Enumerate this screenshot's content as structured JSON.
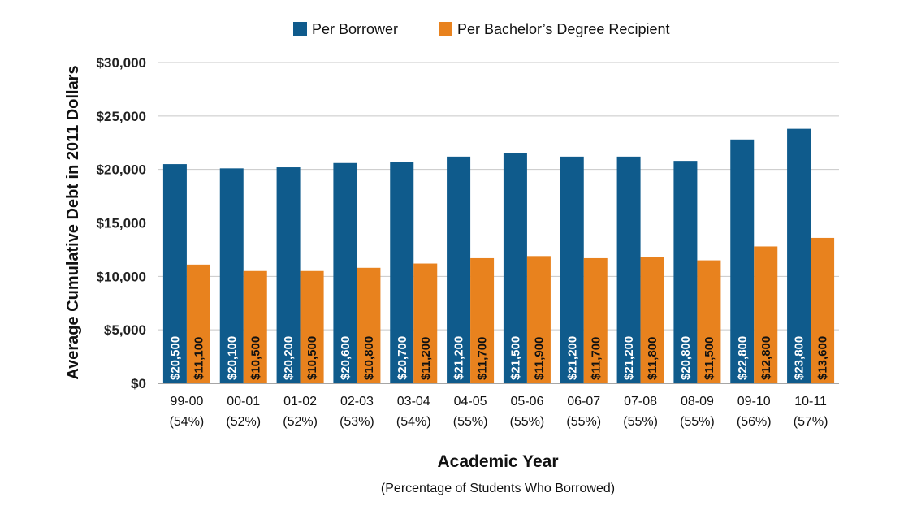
{
  "chart_data": {
    "type": "bar",
    "title": "",
    "xlabel": "Academic Year",
    "xlabel_sub": "(Percentage of Students Who Borrowed)",
    "ylabel": "Average Cumulative Debt in 2011 Dollars",
    "ylim": [
      0,
      30000
    ],
    "yticks": [
      0,
      5000,
      10000,
      15000,
      20000,
      25000,
      30000
    ],
    "ytick_labels": [
      "$0",
      "$5,000",
      "$10,000",
      "$15,000",
      "$20,000",
      "$25,000",
      "$30,000"
    ],
    "grid": true,
    "legend_position": "top-center",
    "categories": [
      "99-00",
      "00-01",
      "01-02",
      "02-03",
      "03-04",
      "04-05",
      "05-06",
      "06-07",
      "07-08",
      "08-09",
      "09-10",
      "10-11"
    ],
    "category_pcts": [
      "(54%)",
      "(52%)",
      "(52%)",
      "(53%)",
      "(54%)",
      "(55%)",
      "(55%)",
      "(55%)",
      "(55%)",
      "(55%)",
      "(56%)",
      "(57%)"
    ],
    "series": [
      {
        "name": "Per Borrower",
        "color": "#0f5b8c",
        "label_color": "#ffffff",
        "values": [
          20500,
          20100,
          20200,
          20600,
          20700,
          21200,
          21500,
          21200,
          21200,
          20800,
          22800,
          23800
        ],
        "labels": [
          "$20,500",
          "$20,100",
          "$20,200",
          "$20,600",
          "$20,700",
          "$21,200",
          "$21,500",
          "$21,200",
          "$21,200",
          "$20,800",
          "$22,800",
          "$23,800"
        ]
      },
      {
        "name": "Per Bachelor’s Degree Recipient",
        "color": "#e8821e",
        "label_color": "#111111",
        "values": [
          11100,
          10500,
          10500,
          10800,
          11200,
          11700,
          11900,
          11700,
          11800,
          11500,
          12800,
          13600
        ],
        "labels": [
          "$11,100",
          "$10,500",
          "$10,500",
          "$10,800",
          "$11,200",
          "$11,700",
          "$11,900",
          "$11,700",
          "$11,800",
          "$11,500",
          "$12,800",
          "$13,600"
        ]
      }
    ]
  }
}
